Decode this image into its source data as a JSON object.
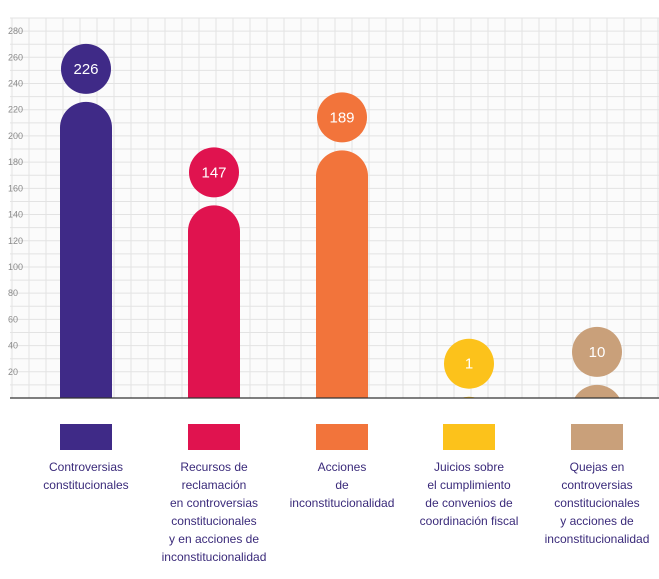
{
  "chart_data": {
    "type": "bar",
    "categories": [
      "Controversias\nconstitucionales",
      "Recursos de\nreclamación\nen controversias\nconstitucionales\ny en acciones de\ninconstitucionalidad",
      "Acciones\nde inconstitucionalidad",
      "Juicios sobre\nel cumplimiento\nde convenios de\ncoordinación fiscal",
      "Quejas en\ncontroversias\nconstitucionales\ny acciones de\ninconstitucionalidad"
    ],
    "values": [
      226,
      147,
      189,
      1,
      10
    ],
    "value_labels": [
      "226",
      "147",
      "189",
      "1",
      "10"
    ],
    "colors": [
      "#3f2a87",
      "#e0134f",
      "#f2743b",
      "#fcc21b",
      "#c9a07a"
    ],
    "yticks": [
      "20",
      "40",
      "60",
      "80",
      "100",
      "120",
      "140",
      "160",
      "180",
      "200",
      "220",
      "240",
      "260",
      "280"
    ],
    "ylim": [
      0,
      290
    ],
    "grid": true,
    "legend_placement": "bottom"
  }
}
